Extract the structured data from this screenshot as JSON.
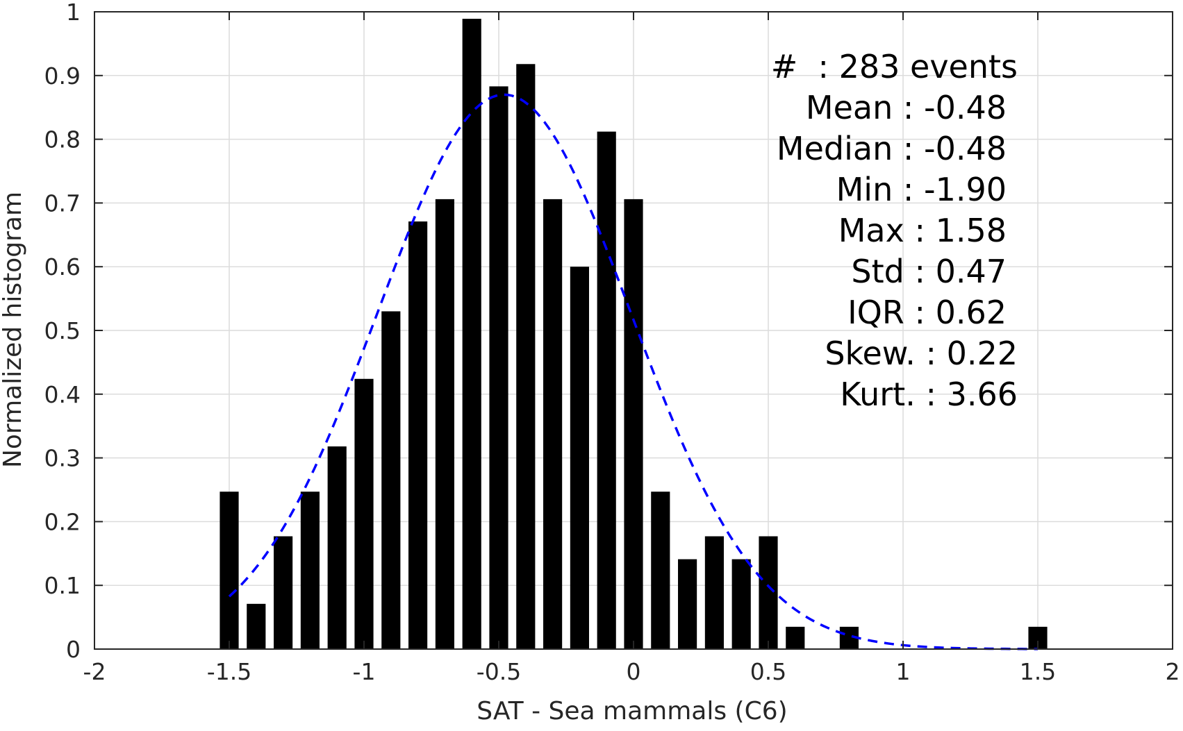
{
  "chart_data": {
    "type": "bar",
    "title": "",
    "xlabel": "SAT - Sea mammals (C6)",
    "ylabel": "Normalized histogram",
    "xlim": [
      -2,
      2
    ],
    "ylim": [
      0,
      1
    ],
    "xticks": [
      "-2",
      "-1.5",
      "-1",
      "-0.5",
      "0",
      "0.5",
      "1",
      "1.5",
      "2"
    ],
    "xtick_values": [
      -2,
      -1.5,
      -1,
      -0.5,
      0,
      0.5,
      1,
      1.5,
      2
    ],
    "yticks": [
      "0",
      "0.1",
      "0.2",
      "0.3",
      "0.4",
      "0.5",
      "0.6",
      "0.7",
      "0.8",
      "0.9",
      "1"
    ],
    "ytick_values": [
      0,
      0.1,
      0.2,
      0.3,
      0.4,
      0.5,
      0.6,
      0.7,
      0.8,
      0.9,
      1
    ],
    "grid": true,
    "bin_width": 0.1,
    "bars": [
      {
        "x": -1.5,
        "y": 0.247
      },
      {
        "x": -1.4,
        "y": 0.071
      },
      {
        "x": -1.3,
        "y": 0.177
      },
      {
        "x": -1.2,
        "y": 0.247
      },
      {
        "x": -1.1,
        "y": 0.318
      },
      {
        "x": -1.0,
        "y": 0.424
      },
      {
        "x": -0.9,
        "y": 0.53
      },
      {
        "x": -0.8,
        "y": 0.671
      },
      {
        "x": -0.7,
        "y": 0.706
      },
      {
        "x": -0.6,
        "y": 0.989
      },
      {
        "x": -0.5,
        "y": 0.883
      },
      {
        "x": -0.4,
        "y": 0.918
      },
      {
        "x": -0.3,
        "y": 0.706
      },
      {
        "x": -0.2,
        "y": 0.6
      },
      {
        "x": -0.1,
        "y": 0.812
      },
      {
        "x": 0.0,
        "y": 0.706
      },
      {
        "x": 0.1,
        "y": 0.247
      },
      {
        "x": 0.2,
        "y": 0.141
      },
      {
        "x": 0.3,
        "y": 0.177
      },
      {
        "x": 0.4,
        "y": 0.141
      },
      {
        "x": 0.5,
        "y": 0.177
      },
      {
        "x": 0.6,
        "y": 0.035
      },
      {
        "x": 0.8,
        "y": 0.035
      },
      {
        "x": 1.5,
        "y": 0.035
      }
    ],
    "fit_curve": {
      "style": "dashed",
      "color": "#0000ff",
      "x_range": [
        -1.5,
        1.5
      ],
      "mean": -0.48,
      "std": 0.47,
      "peak": 0.87
    },
    "bar_color": "#000000",
    "stats": [
      {
        "label": "#  : 283 events"
      },
      {
        "label": "Mean : -0.48"
      },
      {
        "label": "Median : -0.48"
      },
      {
        "label": "Min : -1.90"
      },
      {
        "label": "Max : 1.58"
      },
      {
        "label": "Std : 0.47"
      },
      {
        "label": "IQR : 0.62"
      },
      {
        "label": "Skew. : 0.22"
      },
      {
        "label": "Kurt. : 3.66"
      }
    ]
  }
}
